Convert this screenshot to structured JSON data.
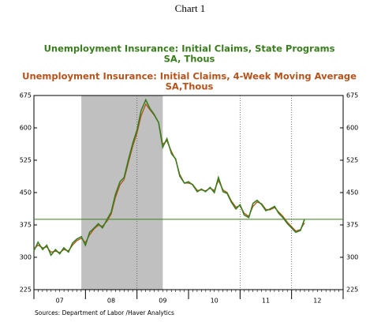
{
  "chart_data": {
    "type": "line",
    "title": "Chart 1",
    "series_titles": [
      {
        "line1": "Unemployment Insurance: Initial Claims, State Programs",
        "line2": "SA, Thous",
        "color": "#3a7d1e"
      },
      {
        "line1": "Unemployment Insurance: Initial Claims, 4-Week Moving Average",
        "line2": "SA,Thous",
        "color": "#b5531c"
      }
    ],
    "source": "Sources:  Department of Labor /Haver Analytics",
    "x": [
      2007.0,
      2007.08,
      2007.17,
      2007.25,
      2007.33,
      2007.42,
      2007.5,
      2007.58,
      2007.67,
      2007.75,
      2007.83,
      2007.92,
      2008.0,
      2008.08,
      2008.17,
      2008.25,
      2008.33,
      2008.42,
      2008.5,
      2008.58,
      2008.67,
      2008.75,
      2008.83,
      2008.92,
      2009.0,
      2009.08,
      2009.17,
      2009.25,
      2009.33,
      2009.42,
      2009.5,
      2009.58,
      2009.67,
      2009.75,
      2009.83,
      2009.92,
      2010.0,
      2010.08,
      2010.17,
      2010.25,
      2010.33,
      2010.42,
      2010.5,
      2010.58,
      2010.67,
      2010.75,
      2010.83,
      2010.92,
      2011.0,
      2011.08,
      2011.17,
      2011.25,
      2011.33,
      2011.42,
      2011.5,
      2011.58,
      2011.67,
      2011.75,
      2011.83,
      2011.92,
      2012.0,
      2012.08,
      2012.17,
      2012.25
    ],
    "series": [
      {
        "name": "State Programs",
        "color": "#3a7d1e",
        "values": [
          315,
          335,
          318,
          328,
          305,
          318,
          308,
          322,
          312,
          333,
          342,
          348,
          328,
          358,
          368,
          378,
          368,
          388,
          405,
          445,
          475,
          485,
          525,
          565,
          595,
          640,
          665,
          645,
          632,
          612,
          555,
          575,
          540,
          528,
          488,
          472,
          475,
          468,
          452,
          458,
          452,
          462,
          450,
          485,
          452,
          448,
          428,
          412,
          422,
          398,
          392,
          425,
          432,
          422,
          408,
          412,
          418,
          402,
          392,
          378,
          368,
          358,
          362,
          388
        ]
      },
      {
        "name": "4-Week Moving Average",
        "color": "#b5531c",
        "values": [
          320,
          328,
          322,
          324,
          312,
          314,
          311,
          318,
          315,
          328,
          338,
          344,
          334,
          352,
          366,
          374,
          372,
          384,
          400,
          438,
          468,
          480,
          518,
          558,
          588,
          628,
          655,
          642,
          630,
          612,
          562,
          570,
          545,
          526,
          492,
          472,
          472,
          469,
          455,
          456,
          454,
          460,
          455,
          478,
          456,
          450,
          431,
          416,
          420,
          402,
          395,
          418,
          428,
          424,
          411,
          410,
          415,
          405,
          395,
          381,
          371,
          361,
          364,
          380
        ]
      }
    ],
    "xlim": [
      2007.0,
      2013.0
    ],
    "xticks": [
      2007,
      2008,
      2009,
      2010,
      2011,
      2012,
      2013
    ],
    "xlabels": [
      {
        "value": 2007.5,
        "label": "07"
      },
      {
        "value": 2008.5,
        "label": "08"
      },
      {
        "value": 2009.5,
        "label": "09"
      },
      {
        "value": 2010.5,
        "label": "10"
      },
      {
        "value": 2011.5,
        "label": "11"
      },
      {
        "value": 2012.5,
        "label": "12"
      }
    ],
    "xgrid": [
      2009,
      2011,
      2012
    ],
    "shade": [
      2007.92,
      2009.5
    ],
    "hline": 388,
    "ylim": [
      225,
      675
    ],
    "yticks": [
      225,
      300,
      375,
      450,
      525,
      600,
      675
    ]
  }
}
